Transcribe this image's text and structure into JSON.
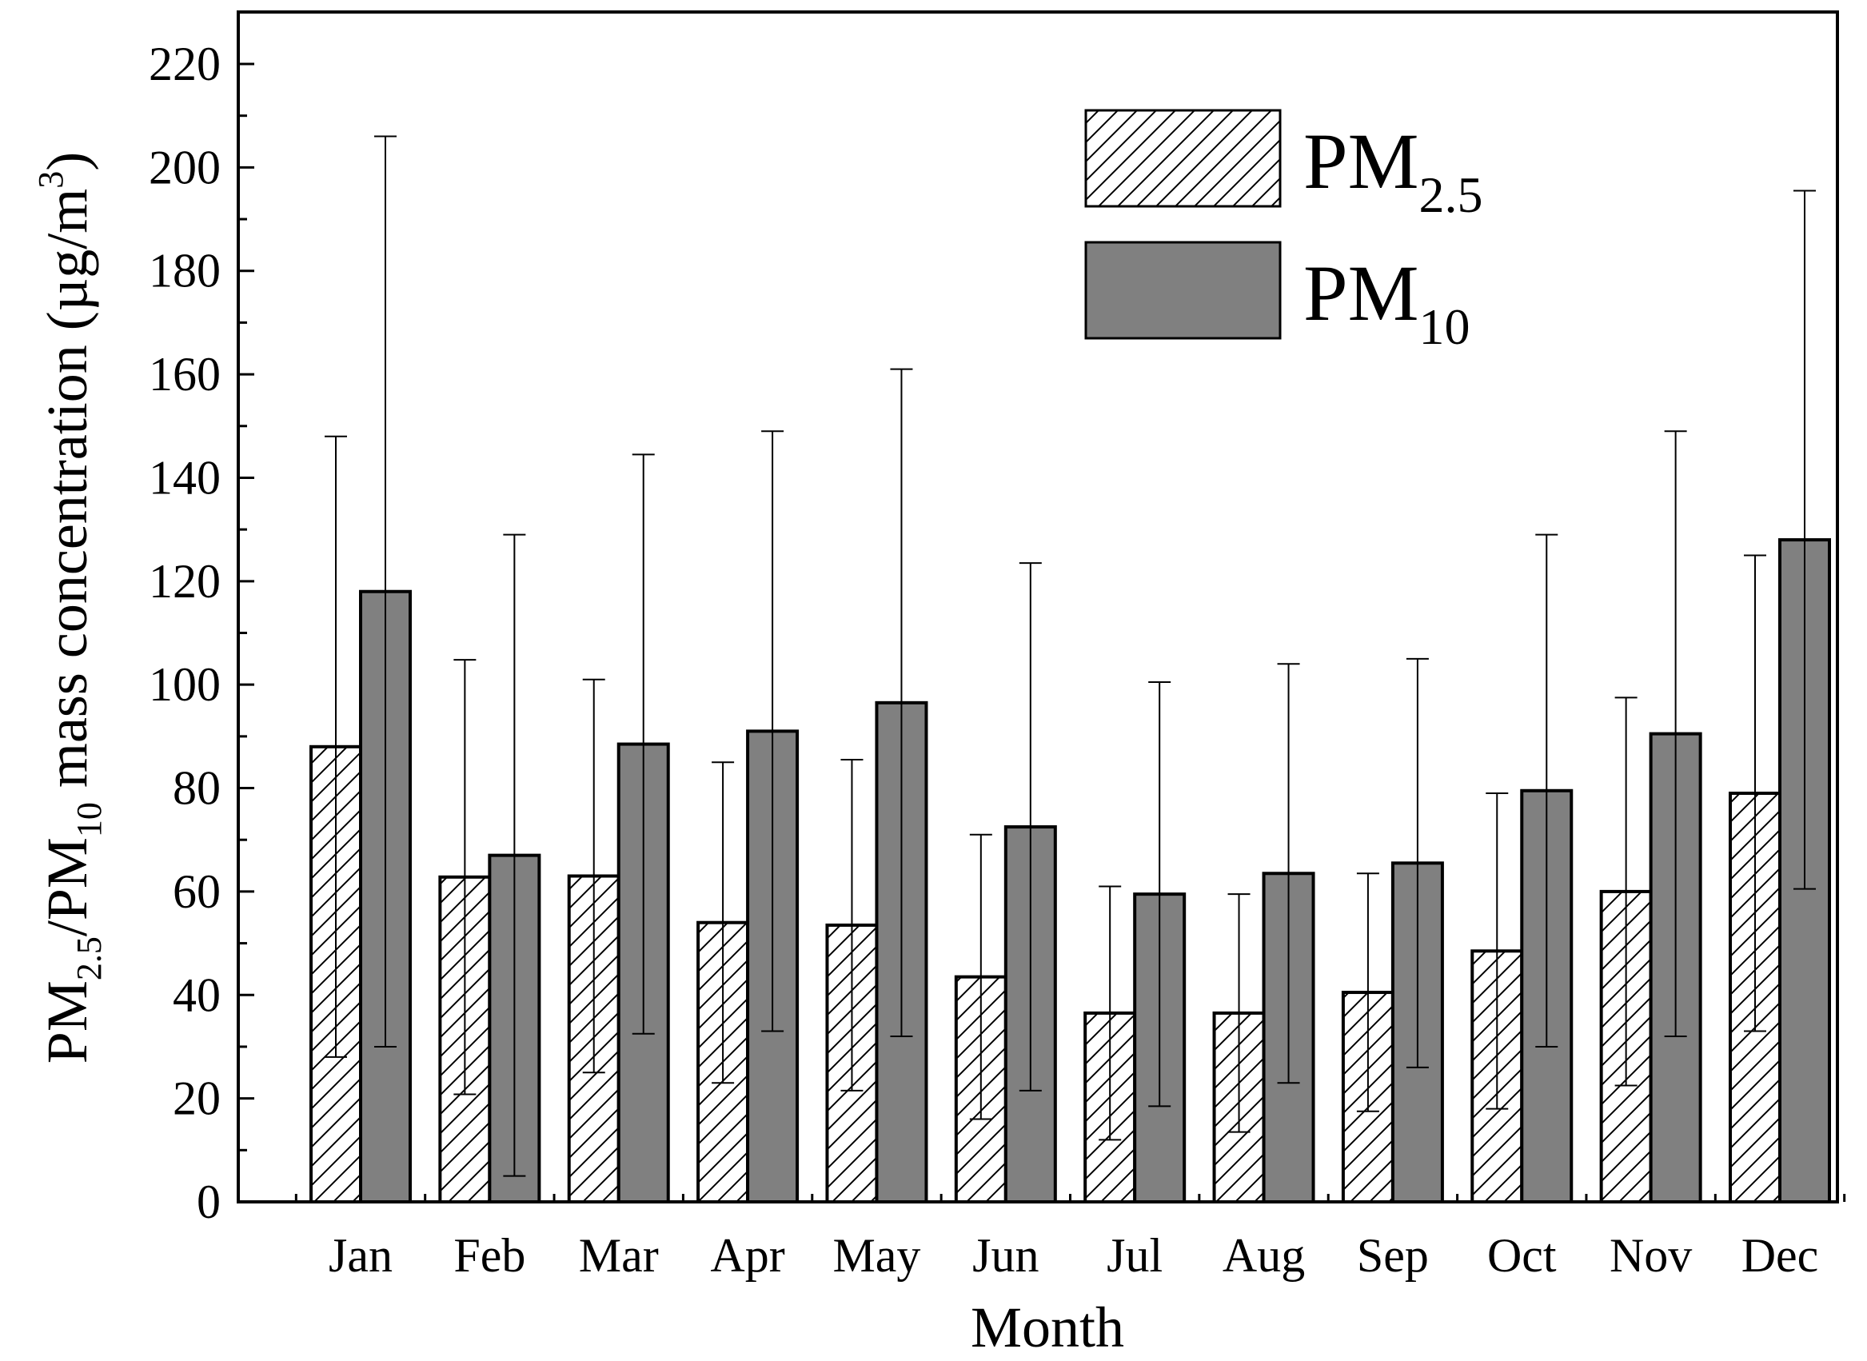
{
  "chart_data": {
    "type": "bar",
    "title": "",
    "xlabel": "Month",
    "ylabel": {
      "prefix": "PM",
      "sub1": "2.5",
      "middle": "/PM",
      "sub2": "10",
      "suffix": " mass concentration (µg/m",
      "sup": "3",
      "close": ")"
    },
    "ylim": [
      0,
      220
    ],
    "yticks": [
      0,
      20,
      40,
      60,
      80,
      100,
      120,
      140,
      160,
      180,
      200,
      220
    ],
    "categories": [
      "Jan",
      "Feb",
      "Mar",
      "Apr",
      "May",
      "Jun",
      "Jul",
      "Aug",
      "Sep",
      "Oct",
      "Nov",
      "Dec"
    ],
    "series": [
      {
        "name": "PM2.5",
        "legend_main": "PM",
        "legend_sub": "2.5",
        "fill": "hatch",
        "values": [
          88,
          62.8,
          63,
          54,
          53.5,
          43.5,
          36.5,
          36.5,
          40.5,
          48.5,
          60,
          79
        ],
        "errors": [
          60,
          42,
          38,
          31,
          32,
          27.5,
          24.5,
          23,
          23,
          30.5,
          37.5,
          46
        ]
      },
      {
        "name": "PM10",
        "legend_main": "PM",
        "legend_sub": "10",
        "fill": "#808080",
        "values": [
          118,
          67,
          88.5,
          91,
          96.5,
          72.5,
          59.5,
          63.5,
          65.5,
          79.5,
          90.5,
          128
        ],
        "errors": [
          88,
          62,
          56,
          58,
          64.5,
          51,
          41,
          40.5,
          39.5,
          49.5,
          58.5,
          67.5
        ]
      }
    ],
    "legend_position": "top-right"
  }
}
